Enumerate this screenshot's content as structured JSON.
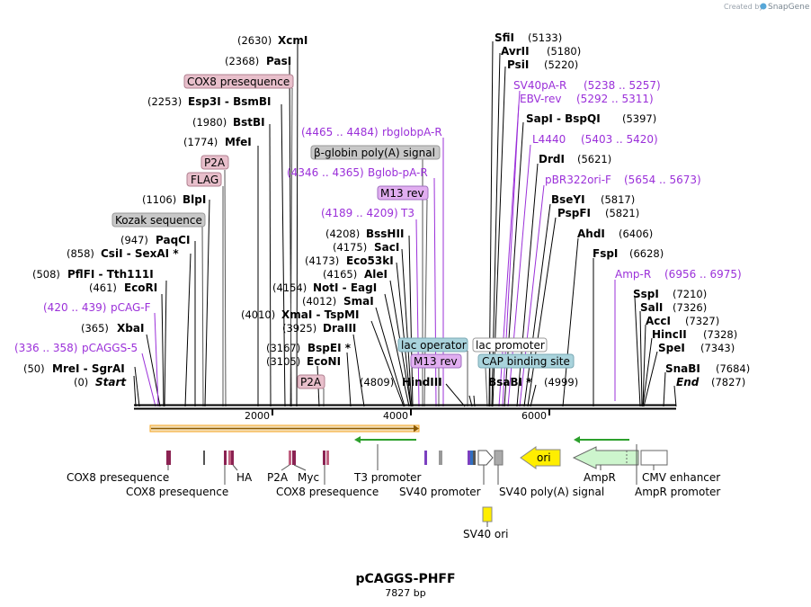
{
  "credit": "Created by",
  "brand": "SnapGene",
  "plasmid": {
    "name": "pCAGGS-PHFF",
    "length_label": "7827 bp"
  },
  "ruler_ticks": [
    "2000",
    "4000",
    "6000"
  ],
  "sites": [
    {
      "pos": "(2630)",
      "name": "XcmI"
    },
    {
      "pos": "(2368)",
      "name": "PasI"
    },
    {
      "pos": "(2253)",
      "name": "Esp3I",
      "name2": "BsmBI"
    },
    {
      "pos": "(1980)",
      "name": "BstBI"
    },
    {
      "pos": "(1774)",
      "name": "MfeI"
    },
    {
      "pos": "(1106)",
      "name": "BlpI"
    },
    {
      "pos": "(947)",
      "name": "PaqCI"
    },
    {
      "pos": "(858)",
      "name": "CsiI",
      "name2": "SexAI *"
    },
    {
      "pos": "(508)",
      "name": "PflFI",
      "name2": "Tth111I"
    },
    {
      "pos": "(461)",
      "name": "EcoRI"
    },
    {
      "pos": "(365)",
      "name": "XbaI"
    },
    {
      "pos": "(50)",
      "name": "MreI",
      "name2": "SgrAI"
    },
    {
      "pos": "(0)",
      "name": "Start"
    },
    {
      "pos": "(4208)",
      "name": "BssHII"
    },
    {
      "pos": "(4175)",
      "name": "SacI"
    },
    {
      "pos": "(4173)",
      "name": "Eco53kI"
    },
    {
      "pos": "(4165)",
      "name": "AleI"
    },
    {
      "pos": "(4154)",
      "name": "NotI",
      "name2": "EagI"
    },
    {
      "pos": "(4012)",
      "name": "SmaI"
    },
    {
      "pos": "(4010)",
      "name": "XmaI",
      "name2": "TspMI"
    },
    {
      "pos": "(3925)",
      "name": "DraIII"
    },
    {
      "pos": "(3167)",
      "name": "BspEI *"
    },
    {
      "pos": "(3105)",
      "name": "EcoNI"
    },
    {
      "pos": "(4809)",
      "name": "HindIII"
    },
    {
      "pos": "(4999)",
      "name": "BsaBI *"
    },
    {
      "pos": "(5133)",
      "name": "SfiI"
    },
    {
      "pos": "(5180)",
      "name": "AvrII"
    },
    {
      "pos": "(5220)",
      "name": "PsiI"
    },
    {
      "pos": "(5397)",
      "name": "SapI",
      "name2": "BspQI"
    },
    {
      "pos": "(5621)",
      "name": "DrdI"
    },
    {
      "pos": "(5817)",
      "name": "BseYI"
    },
    {
      "pos": "(5821)",
      "name": "PspFI"
    },
    {
      "pos": "(6406)",
      "name": "AhdI"
    },
    {
      "pos": "(6628)",
      "name": "FspI"
    },
    {
      "pos": "(7210)",
      "name": "SspI"
    },
    {
      "pos": "(7326)",
      "name": "SalI"
    },
    {
      "pos": "(7327)",
      "name": "AccI"
    },
    {
      "pos": "(7328)",
      "name": "HincII"
    },
    {
      "pos": "(7343)",
      "name": "SpeI"
    },
    {
      "pos": "(7684)",
      "name": "SnaBI"
    },
    {
      "pos": "(7827)",
      "name": "End"
    }
  ],
  "primers": [
    {
      "pos": "(420 .. 439)",
      "name": "pCAG-F"
    },
    {
      "pos": "(336 .. 358)",
      "name": "pCAGGS-5"
    },
    {
      "pos": "(4465 .. 4484)",
      "name": "rbglobpA-R"
    },
    {
      "pos": "(4346 .. 4365)",
      "name": "Bglob-pA-R"
    },
    {
      "pos": "(4189 .. 4209)",
      "name": "T3"
    },
    {
      "pos": "(5238 .. 5257)",
      "name": "SV40pA-R"
    },
    {
      "pos": "(5292 .. 5311)",
      "name": "EBV-rev"
    },
    {
      "pos": "(5403 .. 5420)",
      "name": "L4440"
    },
    {
      "pos": "(5654 .. 5673)",
      "name": "pBR322ori-F"
    },
    {
      "pos": "(6956 .. 6975)",
      "name": "Amp-R"
    }
  ],
  "boxed_labels": [
    {
      "text": "COX8 presequence",
      "fill": "#e8bfcb"
    },
    {
      "text": "P2A",
      "fill": "#e8bfcb"
    },
    {
      "text": "FLAG",
      "fill": "#e8bfcb"
    },
    {
      "text": "Kozak sequence",
      "fill": "#c8c8c8"
    },
    {
      "text": "β-globin poly(A) signal",
      "fill": "#c8c8c8"
    },
    {
      "text": "M13 rev",
      "fill": "#e1aef0"
    },
    {
      "text": "P2A",
      "fill": "#e8bfcb"
    },
    {
      "text": "lac operator",
      "fill": "#a9d3dc"
    },
    {
      "text": "M13 rev",
      "fill": "#e1aef0"
    },
    {
      "text": "lac promoter",
      "fill": "#ffffff"
    },
    {
      "text": "CAP binding site",
      "fill": "#a9d3dc"
    }
  ],
  "features": [
    {
      "text": "COX8 presequence"
    },
    {
      "text": "COX8 presequence"
    },
    {
      "text": "HA"
    },
    {
      "text": "P2A"
    },
    {
      "text": "Myc"
    },
    {
      "text": "COX8 presequence"
    },
    {
      "text": "T3 promoter"
    },
    {
      "text": "SV40 promoter"
    },
    {
      "text": "SV40 poly(A) signal"
    },
    {
      "text": "AmpR"
    },
    {
      "text": "AmpR promoter"
    },
    {
      "text": "CMV enhancer"
    },
    {
      "text": "SV40 ori"
    },
    {
      "text": "ori"
    }
  ],
  "colors": {
    "primer": "#9b30d9",
    "cox8": "#8b2252",
    "ori": "#ffee00",
    "ampr": "#cdf5cd",
    "orf": "#f5a623",
    "promoter": "#2ca02c"
  }
}
